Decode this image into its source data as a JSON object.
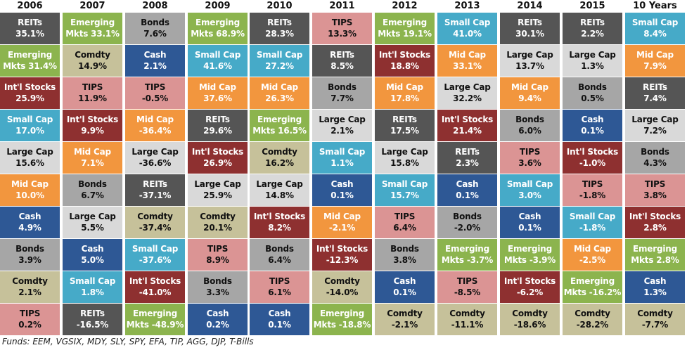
{
  "chart_data": {
    "type": "table",
    "columns": [
      {
        "year": "2006",
        "cells": [
          {
            "asset": "REITs",
            "value": "35.1%"
          },
          {
            "asset": "Emerging Mkts",
            "value": "31.4%"
          },
          {
            "asset": "Int'l Stocks",
            "value": "25.9%"
          },
          {
            "asset": "Small Cap",
            "value": "17.0%"
          },
          {
            "asset": "Large Cap",
            "value": "15.6%"
          },
          {
            "asset": "Mid Cap",
            "value": "10.0%"
          },
          {
            "asset": "Cash",
            "value": "4.9%"
          },
          {
            "asset": "Bonds",
            "value": "3.9%"
          },
          {
            "asset": "Comdty",
            "value": "2.1%"
          },
          {
            "asset": "TIPS",
            "value": "0.2%"
          }
        ]
      },
      {
        "year": "2007",
        "cells": [
          {
            "asset": "Emerging Mkts",
            "value": "33.1%"
          },
          {
            "asset": "Comdty",
            "value": "14.9%"
          },
          {
            "asset": "TIPS",
            "value": "11.9%"
          },
          {
            "asset": "Int'l Stocks",
            "value": "9.9%"
          },
          {
            "asset": "Mid Cap",
            "value": "7.1%"
          },
          {
            "asset": "Bonds",
            "value": "6.7%"
          },
          {
            "asset": "Large Cap",
            "value": "5.5%"
          },
          {
            "asset": "Cash",
            "value": "5.0%"
          },
          {
            "asset": "Small Cap",
            "value": "1.8%"
          },
          {
            "asset": "REITs",
            "value": "-16.5%"
          }
        ]
      },
      {
        "year": "2008",
        "cells": [
          {
            "asset": "Bonds",
            "value": "7.6%"
          },
          {
            "asset": "Cash",
            "value": "2.1%"
          },
          {
            "asset": "TIPS",
            "value": "-0.5%"
          },
          {
            "asset": "Mid Cap",
            "value": "-36.4%"
          },
          {
            "asset": "Large Cap",
            "value": "-36.6%"
          },
          {
            "asset": "REITs",
            "value": "-37.1%"
          },
          {
            "asset": "Comdty",
            "value": "-37.4%"
          },
          {
            "asset": "Small Cap",
            "value": "-37.6%"
          },
          {
            "asset": "Int'l Stocks",
            "value": "-41.0%"
          },
          {
            "asset": "Emerging Mkts",
            "value": "-48.9%"
          }
        ]
      },
      {
        "year": "2009",
        "cells": [
          {
            "asset": "Emerging Mkts",
            "value": "68.9%"
          },
          {
            "asset": "Small Cap",
            "value": "41.6%"
          },
          {
            "asset": "Mid Cap",
            "value": "37.6%"
          },
          {
            "asset": "REITs",
            "value": "29.6%"
          },
          {
            "asset": "Int'l Stocks",
            "value": "26.9%"
          },
          {
            "asset": "Large Cap",
            "value": "25.9%"
          },
          {
            "asset": "Comdty",
            "value": "20.1%"
          },
          {
            "asset": "TIPS",
            "value": "8.9%"
          },
          {
            "asset": "Bonds",
            "value": "3.3%"
          },
          {
            "asset": "Cash",
            "value": "0.2%"
          }
        ]
      },
      {
        "year": "2010",
        "cells": [
          {
            "asset": "REITs",
            "value": "28.3%"
          },
          {
            "asset": "Small Cap",
            "value": "27.2%"
          },
          {
            "asset": "Mid Cap",
            "value": "26.3%"
          },
          {
            "asset": "Emerging Mkts",
            "value": "16.5%"
          },
          {
            "asset": "Comdty",
            "value": "16.2%"
          },
          {
            "asset": "Large Cap",
            "value": "14.8%"
          },
          {
            "asset": "Int'l Stocks",
            "value": "8.2%"
          },
          {
            "asset": "Bonds",
            "value": "6.4%"
          },
          {
            "asset": "TIPS",
            "value": "6.1%"
          },
          {
            "asset": "Cash",
            "value": "0.1%"
          }
        ]
      },
      {
        "year": "2011",
        "cells": [
          {
            "asset": "TIPS",
            "value": "13.3%"
          },
          {
            "asset": "REITs",
            "value": "8.5%"
          },
          {
            "asset": "Bonds",
            "value": "7.7%"
          },
          {
            "asset": "Large Cap",
            "value": "2.1%"
          },
          {
            "asset": "Small Cap",
            "value": "1.1%"
          },
          {
            "asset": "Cash",
            "value": "0.1%"
          },
          {
            "asset": "Mid Cap",
            "value": "-2.1%"
          },
          {
            "asset": "Int'l Stocks",
            "value": "-12.3%"
          },
          {
            "asset": "Comdty",
            "value": "-14.0%"
          },
          {
            "asset": "Emerging Mkts",
            "value": "-18.8%"
          }
        ]
      },
      {
        "year": "2012",
        "cells": [
          {
            "asset": "Emerging Mkts",
            "value": "19.1%"
          },
          {
            "asset": "Int'l Stocks",
            "value": "18.8%"
          },
          {
            "asset": "Mid Cap",
            "value": "17.8%"
          },
          {
            "asset": "REITs",
            "value": "17.5%"
          },
          {
            "asset": "Large Cap",
            "value": "15.8%"
          },
          {
            "asset": "Small Cap",
            "value": "15.7%"
          },
          {
            "asset": "TIPS",
            "value": "6.4%"
          },
          {
            "asset": "Bonds",
            "value": "3.8%"
          },
          {
            "asset": "Cash",
            "value": "0.1%"
          },
          {
            "asset": "Comdty",
            "value": "-2.1%"
          }
        ]
      },
      {
        "year": "2013",
        "cells": [
          {
            "asset": "Small Cap",
            "value": "41.0%"
          },
          {
            "asset": "Mid Cap",
            "value": "33.1%"
          },
          {
            "asset": "Large Cap",
            "value": "32.2%"
          },
          {
            "asset": "Int'l Stocks",
            "value": "21.4%"
          },
          {
            "asset": "REITs",
            "value": "2.3%"
          },
          {
            "asset": "Cash",
            "value": "0.1%"
          },
          {
            "asset": "Bonds",
            "value": "-2.0%"
          },
          {
            "asset": "Emerging Mkts",
            "value": "-3.7%"
          },
          {
            "asset": "TIPS",
            "value": "-8.5%"
          },
          {
            "asset": "Comdty",
            "value": "-11.1%"
          }
        ]
      },
      {
        "year": "2014",
        "cells": [
          {
            "asset": "REITs",
            "value": "30.1%"
          },
          {
            "asset": "Large Cap",
            "value": "13.7%"
          },
          {
            "asset": "Mid Cap",
            "value": "9.4%"
          },
          {
            "asset": "Bonds",
            "value": "6.0%"
          },
          {
            "asset": "TIPS",
            "value": "3.6%"
          },
          {
            "asset": "Small Cap",
            "value": "3.0%"
          },
          {
            "asset": "Cash",
            "value": "0.1%"
          },
          {
            "asset": "Emerging Mkts",
            "value": "-3.9%"
          },
          {
            "asset": "Int'l Stocks",
            "value": "-6.2%"
          },
          {
            "asset": "Comdty",
            "value": "-18.6%"
          }
        ]
      },
      {
        "year": "2015",
        "cells": [
          {
            "asset": "REITs",
            "value": "2.2%"
          },
          {
            "asset": "Large Cap",
            "value": "1.3%"
          },
          {
            "asset": "Bonds",
            "value": "0.5%"
          },
          {
            "asset": "Cash",
            "value": "0.1%"
          },
          {
            "asset": "Int'l Stocks",
            "value": "-1.0%"
          },
          {
            "asset": "TIPS",
            "value": "-1.8%"
          },
          {
            "asset": "Small Cap",
            "value": "-1.8%"
          },
          {
            "asset": "Mid Cap",
            "value": "-2.5%"
          },
          {
            "asset": "Emerging Mkts",
            "value": "-16.2%"
          },
          {
            "asset": "Comdty",
            "value": "-28.2%"
          }
        ]
      },
      {
        "year": "10 Years",
        "cells": [
          {
            "asset": "Small Cap",
            "value": "8.4%"
          },
          {
            "asset": "Mid Cap",
            "value": "7.9%"
          },
          {
            "asset": "REITs",
            "value": "7.4%"
          },
          {
            "asset": "Large Cap",
            "value": "7.2%"
          },
          {
            "asset": "Bonds",
            "value": "4.3%"
          },
          {
            "asset": "TIPS",
            "value": "3.8%"
          },
          {
            "asset": "Int'l Stocks",
            "value": "2.8%"
          },
          {
            "asset": "Emerging Mkts",
            "value": "2.8%"
          },
          {
            "asset": "Cash",
            "value": "1.3%"
          },
          {
            "asset": "Comdty",
            "value": "-7.7%"
          }
        ]
      }
    ],
    "asset_colors": {
      "REITs": {
        "bg": "#555555",
        "fg": "#ffffff"
      },
      "Emerging Mkts": {
        "bg": "#8cb44e",
        "fg": "#ffffff"
      },
      "Int'l Stocks": {
        "bg": "#8e3030",
        "fg": "#ffffff"
      },
      "Small Cap": {
        "bg": "#46aac8",
        "fg": "#ffffff"
      },
      "Large Cap": {
        "bg": "#d9d9d9",
        "fg": "#111111"
      },
      "Mid Cap": {
        "bg": "#f2963e",
        "fg": "#ffffff"
      },
      "Cash": {
        "bg": "#2e5895",
        "fg": "#ffffff"
      },
      "Bonds": {
        "bg": "#a6a6a6",
        "fg": "#111111"
      },
      "Comdty": {
        "bg": "#c6c19a",
        "fg": "#111111"
      },
      "TIPS": {
        "bg": "#db9494",
        "fg": "#111111"
      }
    }
  },
  "footer": "Funds: EEM, VGSIX, MDY, SLY, SPY, EFA, TIP, AGG, DJP, T-Bills"
}
